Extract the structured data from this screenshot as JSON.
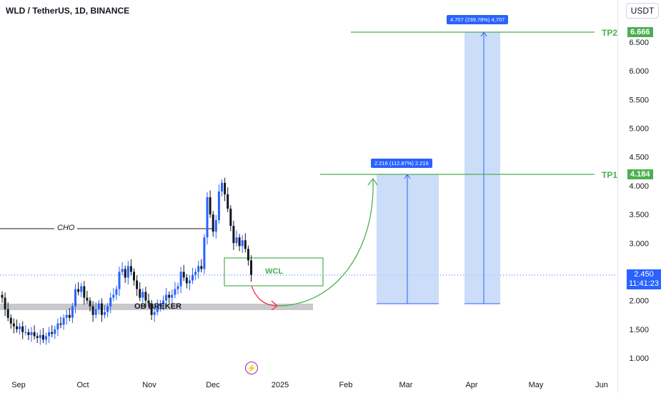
{
  "header": {
    "title": "WLD / TetherUS, 1D, BINANCE",
    "currency_button": "USDT"
  },
  "colors": {
    "up": "#2962ff",
    "down": "#131722",
    "tp": "#4caf50",
    "measure": "#2962ff",
    "curve_up": "#4caf50",
    "curve_down": "#f23645"
  },
  "chart_data": {
    "type": "candlestick",
    "x_labels": [
      "Sep",
      "Oct",
      "Nov",
      "Dec",
      "2025",
      "Feb",
      "Mar",
      "Apr",
      "May",
      "Jun"
    ],
    "y_ticks": [
      "1.000",
      "1.500",
      "2.000",
      "2.500",
      "3.000",
      "3.500",
      "4.000",
      "4.500",
      "5.000",
      "5.500",
      "6.000",
      "6.500"
    ],
    "ylim": [
      0.8,
      7.1
    ],
    "last_price": "2.450",
    "countdown": "11:41:23",
    "levels": [
      {
        "name": "TP1",
        "value": "4.184"
      },
      {
        "name": "TP2",
        "value": "6.666"
      }
    ],
    "annotations": {
      "cho": "CHO",
      "wcl": "WCL",
      "ob": "OB BREKER"
    },
    "measure_labels": [
      "2.216 (112.87%) 2.216",
      "4.707 (239.78%) 4,707"
    ],
    "closes": [
      2.05,
      1.85,
      1.7,
      1.6,
      1.55,
      1.5,
      1.55,
      1.45,
      1.45,
      1.4,
      1.45,
      1.38,
      1.35,
      1.4,
      1.32,
      1.38,
      1.45,
      1.42,
      1.5,
      1.6,
      1.58,
      1.7,
      1.75,
      1.7,
      1.9,
      2.2,
      2.15,
      2.25,
      2.05,
      2.0,
      1.9,
      1.75,
      1.85,
      1.95,
      1.75,
      1.8,
      1.9,
      2.05,
      2.1,
      2.2,
      2.5,
      2.55,
      2.4,
      2.6,
      2.5,
      2.35,
      2.2,
      2.05,
      2.15,
      2.0,
      1.95,
      1.75,
      1.8,
      1.9,
      1.95,
      2.0,
      2.1,
      2.05,
      2.1,
      2.2,
      2.25,
      2.5,
      2.4,
      2.3,
      2.35,
      2.45,
      2.5,
      2.6,
      2.55,
      3.1,
      3.8,
      3.5,
      3.2,
      3.4,
      3.9,
      4.05,
      3.85,
      3.6,
      3.3,
      3.0,
      3.1,
      2.95,
      3.05,
      2.9,
      2.7,
      2.45
    ]
  },
  "badge_icon": "lightning-icon"
}
